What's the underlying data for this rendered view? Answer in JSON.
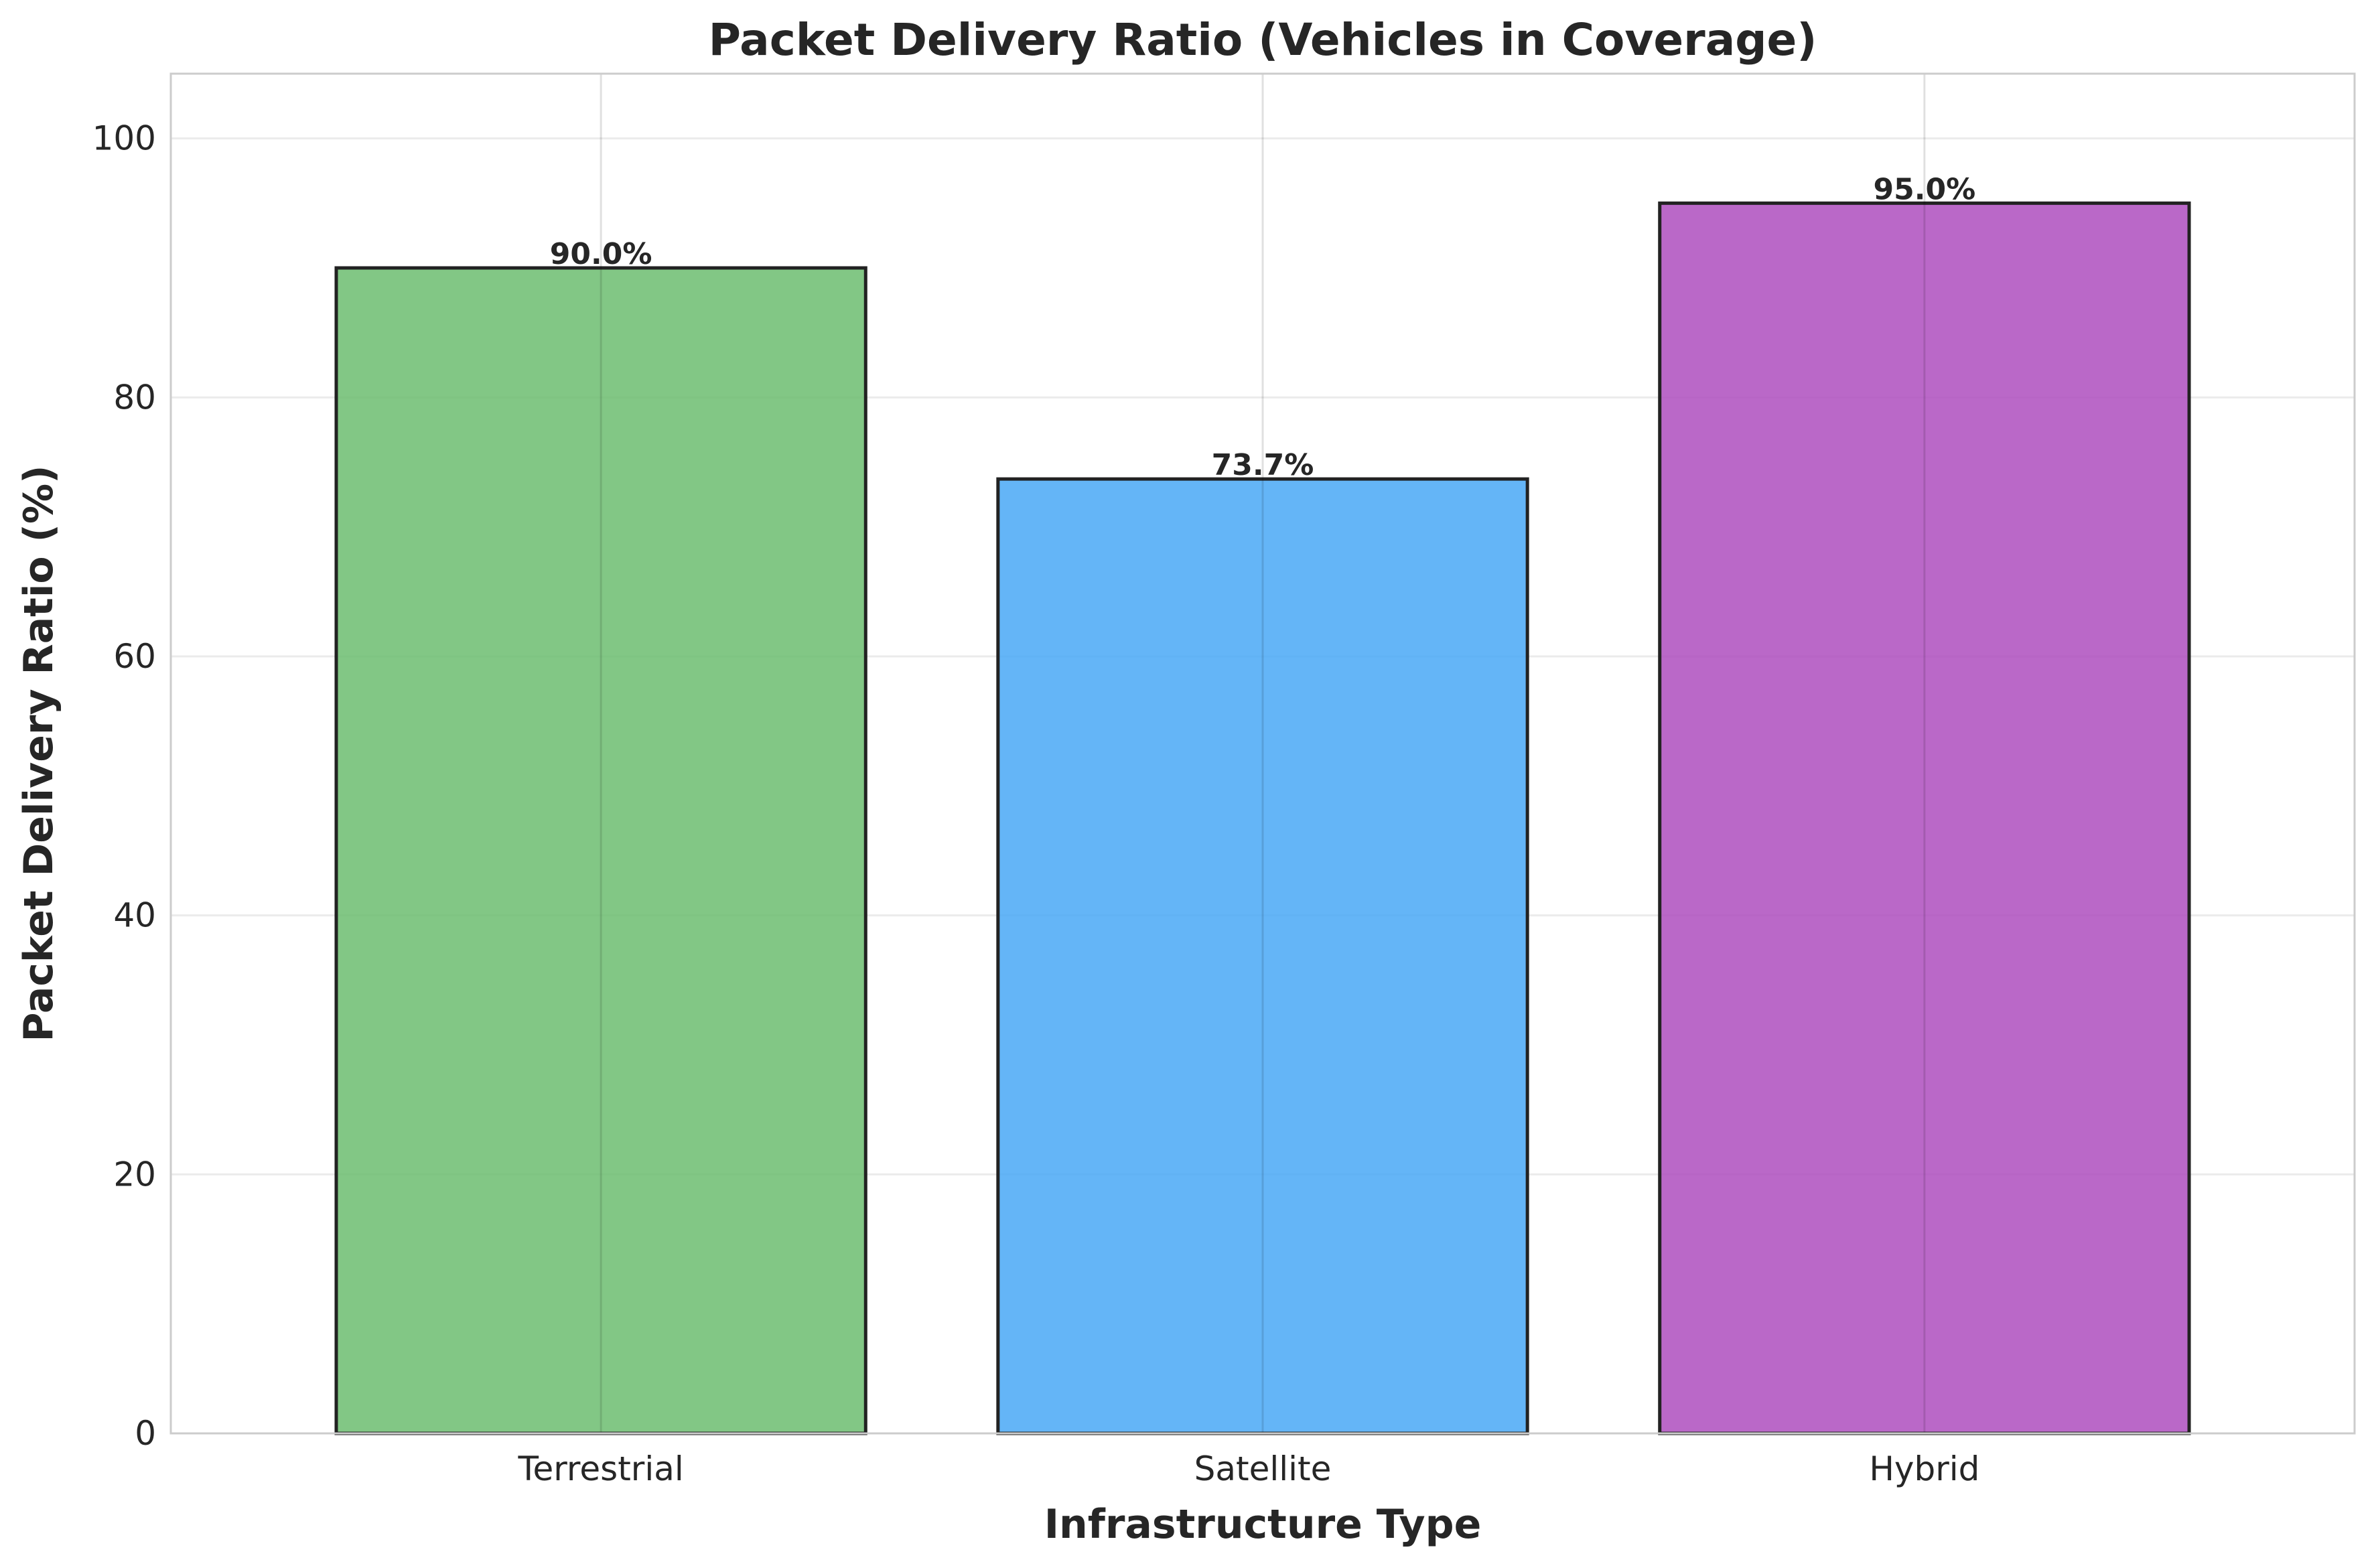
{
  "chart_data": {
    "type": "bar",
    "title": "Packet Delivery Ratio (Vehicles in Coverage)",
    "xlabel": "Infrastructure Type",
    "ylabel": "Packet Delivery Ratio (%)",
    "categories": [
      "Terrestrial",
      "Satellite",
      "Hybrid"
    ],
    "values": [
      90.0,
      73.7,
      95.0
    ],
    "value_labels": [
      "90.0%",
      "73.7%",
      "95.0%"
    ],
    "colors": [
      "#66bb6a",
      "#42a5f5",
      "#ab47bc"
    ],
    "edge_color": "#222222",
    "ylim": [
      0,
      105
    ],
    "yticks": [
      0,
      20,
      40,
      60,
      80,
      100
    ],
    "grid": true
  }
}
